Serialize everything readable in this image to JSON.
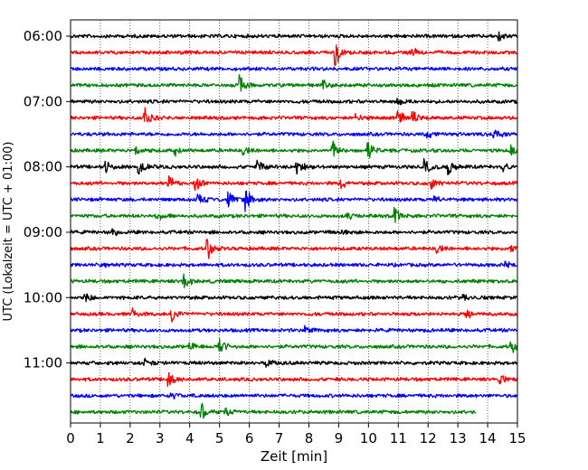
{
  "chart_data": {
    "type": "line",
    "title": "",
    "xlabel": "Zeit  [min]",
    "ylabel": "UTC (Lokalzeit = UTC + 01:00)",
    "xlim": [
      0,
      15
    ],
    "x_ticks": [
      "0",
      "1",
      "2",
      "3",
      "4",
      "5",
      "6",
      "7",
      "8",
      "9",
      "10",
      "11",
      "12",
      "13",
      "14",
      "15"
    ],
    "y_ticks": [
      {
        "label": "06:00",
        "row": 0
      },
      {
        "label": "07:00",
        "row": 4
      },
      {
        "label": "08:00",
        "row": 8
      },
      {
        "label": "09:00",
        "row": 12
      },
      {
        "label": "10:00",
        "row": 16
      },
      {
        "label": "11:00",
        "row": 20
      }
    ],
    "grid": "vertical dotted",
    "row_minutes": 15,
    "colors": [
      "#000000",
      "#ff0000",
      "#0000ff",
      "#008000"
    ],
    "series": [
      {
        "start": "06:00",
        "color": "#000000",
        "end_min": 15,
        "events": [
          {
            "t": 14.4,
            "a": 0.5
          }
        ]
      },
      {
        "start": "06:15",
        "color": "#ff0000",
        "end_min": 15,
        "events": [
          {
            "t": 8.9,
            "a": 1.6
          },
          {
            "t": 11.5,
            "a": 0.4
          }
        ]
      },
      {
        "start": "06:30",
        "color": "#0000ff",
        "end_min": 15,
        "events": []
      },
      {
        "start": "06:45",
        "color": "#008000",
        "end_min": 15,
        "events": [
          {
            "t": 5.7,
            "a": 0.9
          },
          {
            "t": 8.5,
            "a": 0.4
          }
        ]
      },
      {
        "start": "07:00",
        "color": "#000000",
        "end_min": 15,
        "events": [
          {
            "t": 11.0,
            "a": 0.4
          }
        ]
      },
      {
        "start": "07:15",
        "color": "#ff0000",
        "end_min": 15,
        "events": [
          {
            "t": 2.5,
            "a": 1.4
          },
          {
            "t": 11.0,
            "a": 0.8
          },
          {
            "t": 9.6,
            "a": 0.5
          },
          {
            "t": 11.5,
            "a": 0.6
          }
        ]
      },
      {
        "start": "07:30",
        "color": "#0000ff",
        "end_min": 15,
        "events": [
          {
            "t": 14.2,
            "a": 0.6
          },
          {
            "t": 12.0,
            "a": 0.5
          }
        ]
      },
      {
        "start": "07:45",
        "color": "#008000",
        "end_min": 15,
        "events": [
          {
            "t": 8.8,
            "a": 1.0
          },
          {
            "t": 10.0,
            "a": 1.0
          },
          {
            "t": 2.2,
            "a": 0.6
          },
          {
            "t": 3.5,
            "a": 0.6
          },
          {
            "t": 5.8,
            "a": 0.5
          },
          {
            "t": 14.8,
            "a": 0.6
          }
        ]
      },
      {
        "start": "08:00",
        "color": "#000000",
        "end_min": 15,
        "events": [
          {
            "t": 2.3,
            "a": 1.0
          },
          {
            "t": 7.6,
            "a": 1.0
          },
          {
            "t": 12.7,
            "a": 1.0
          },
          {
            "t": 11.9,
            "a": 0.8
          },
          {
            "t": 14.5,
            "a": 0.8
          },
          {
            "t": 6.3,
            "a": 0.7
          },
          {
            "t": 1.2,
            "a": 0.6
          }
        ]
      },
      {
        "start": "08:15",
        "color": "#ff0000",
        "end_min": 15,
        "events": [
          {
            "t": 3.3,
            "a": 0.8
          },
          {
            "t": 4.2,
            "a": 0.8
          },
          {
            "t": 12.1,
            "a": 0.7
          },
          {
            "t": 9.1,
            "a": 0.6
          }
        ]
      },
      {
        "start": "08:30",
        "color": "#0000ff",
        "end_min": 15,
        "events": [
          {
            "t": 5.9,
            "a": 1.2
          },
          {
            "t": 5.3,
            "a": 1.0
          },
          {
            "t": 4.3,
            "a": 0.6
          },
          {
            "t": 12.2,
            "a": 0.4
          }
        ]
      },
      {
        "start": "08:45",
        "color": "#008000",
        "end_min": 15,
        "events": [
          {
            "t": 10.9,
            "a": 0.9
          },
          {
            "t": 2.9,
            "a": 0.5
          },
          {
            "t": 9.3,
            "a": 0.4
          }
        ]
      },
      {
        "start": "09:00",
        "color": "#000000",
        "end_min": 15,
        "events": [
          {
            "t": 1.4,
            "a": 0.5
          },
          {
            "t": 9.1,
            "a": 0.4
          }
        ]
      },
      {
        "start": "09:15",
        "color": "#ff0000",
        "end_min": 15,
        "events": [
          {
            "t": 4.6,
            "a": 1.2
          },
          {
            "t": 12.3,
            "a": 0.5
          },
          {
            "t": 14.8,
            "a": 0.4
          }
        ]
      },
      {
        "start": "09:30",
        "color": "#0000ff",
        "end_min": 15,
        "events": [
          {
            "t": 1.0,
            "a": 0.5
          },
          {
            "t": 14.6,
            "a": 0.3
          }
        ]
      },
      {
        "start": "09:45",
        "color": "#008000",
        "end_min": 15,
        "events": [
          {
            "t": 3.8,
            "a": 1.0
          }
        ]
      },
      {
        "start": "10:00",
        "color": "#000000",
        "end_min": 15,
        "events": [
          {
            "t": 0.5,
            "a": 0.5
          },
          {
            "t": 13.2,
            "a": 0.4
          }
        ]
      },
      {
        "start": "10:15",
        "color": "#ff0000",
        "end_min": 15,
        "events": [
          {
            "t": 3.4,
            "a": 1.1
          },
          {
            "t": 2.1,
            "a": 0.5
          },
          {
            "t": 13.3,
            "a": 0.5
          }
        ]
      },
      {
        "start": "10:30",
        "color": "#0000ff",
        "end_min": 15,
        "events": [
          {
            "t": 7.9,
            "a": 0.4
          }
        ]
      },
      {
        "start": "10:45",
        "color": "#008000",
        "end_min": 15,
        "events": [
          {
            "t": 5.0,
            "a": 1.1
          },
          {
            "t": 14.8,
            "a": 0.7
          },
          {
            "t": 4.0,
            "a": 0.5
          }
        ]
      },
      {
        "start": "11:00",
        "color": "#000000",
        "end_min": 15,
        "events": [
          {
            "t": 2.5,
            "a": 0.5
          },
          {
            "t": 6.6,
            "a": 0.4
          }
        ]
      },
      {
        "start": "11:15",
        "color": "#ff0000",
        "end_min": 15,
        "events": [
          {
            "t": 3.3,
            "a": 0.9
          },
          {
            "t": 14.4,
            "a": 0.6
          }
        ]
      },
      {
        "start": "11:30",
        "color": "#0000ff",
        "end_min": 15,
        "events": [
          {
            "t": 3.4,
            "a": 0.3
          }
        ]
      },
      {
        "start": "11:45",
        "color": "#008000",
        "end_min": 13.6,
        "events": [
          {
            "t": 4.4,
            "a": 1.0
          },
          {
            "t": 5.2,
            "a": 0.5
          }
        ]
      }
    ]
  }
}
